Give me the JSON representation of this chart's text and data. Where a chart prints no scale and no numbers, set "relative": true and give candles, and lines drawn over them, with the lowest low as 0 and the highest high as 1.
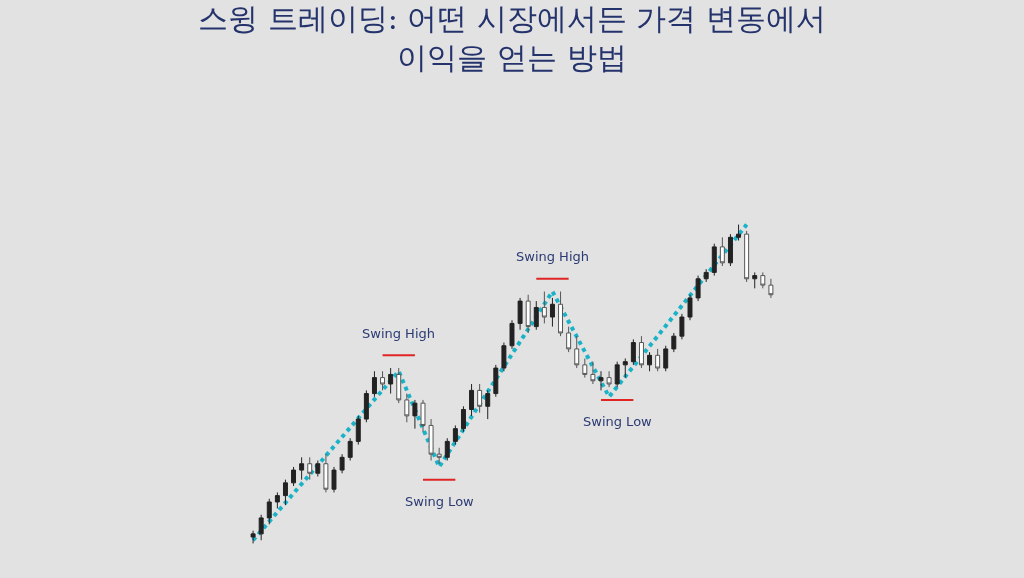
{
  "chart_data": {
    "type": "candlestick",
    "relative": true,
    "title": "스윙 트레이딩: 어떤 시장에서든 가격 변동에서\n이익을 얻는 방법",
    "categories": [
      null,
      null,
      null,
      null,
      null,
      null,
      null,
      null,
      null,
      null,
      null,
      null,
      null,
      null,
      null,
      null,
      null,
      null,
      null,
      null,
      null,
      null,
      null,
      null,
      null,
      null,
      null,
      null,
      null,
      null,
      null,
      null,
      null,
      null,
      null,
      null,
      null,
      null,
      null,
      null,
      null,
      null,
      null,
      null,
      null,
      null,
      null,
      null,
      null,
      null,
      null,
      null,
      null,
      null,
      null,
      null,
      null,
      null,
      null,
      null,
      null,
      null,
      null,
      null,
      null
    ],
    "ohlc": [
      [
        0.02,
        0.04,
        0.0,
        0.03
      ],
      [
        0.03,
        0.09,
        0.01,
        0.08
      ],
      [
        0.08,
        0.14,
        0.06,
        0.13
      ],
      [
        0.13,
        0.16,
        0.11,
        0.15
      ],
      [
        0.15,
        0.2,
        0.12,
        0.19
      ],
      [
        0.19,
        0.24,
        0.18,
        0.23
      ],
      [
        0.23,
        0.27,
        0.2,
        0.25
      ],
      [
        0.25,
        0.27,
        0.2,
        0.22
      ],
      [
        0.22,
        0.26,
        0.21,
        0.25
      ],
      [
        0.25,
        0.28,
        0.16,
        0.17
      ],
      [
        0.17,
        0.24,
        0.16,
        0.23
      ],
      [
        0.23,
        0.28,
        0.22,
        0.27
      ],
      [
        0.27,
        0.33,
        0.26,
        0.32
      ],
      [
        0.32,
        0.4,
        0.31,
        0.39
      ],
      [
        0.39,
        0.48,
        0.38,
        0.47
      ],
      [
        0.47,
        0.54,
        0.46,
        0.52
      ],
      [
        0.52,
        0.54,
        0.48,
        0.5
      ],
      [
        0.5,
        0.55,
        0.47,
        0.53
      ],
      [
        0.53,
        0.55,
        0.44,
        0.45
      ],
      [
        0.45,
        0.47,
        0.38,
        0.4
      ],
      [
        0.4,
        0.45,
        0.36,
        0.44
      ],
      [
        0.44,
        0.45,
        0.35,
        0.37
      ],
      [
        0.37,
        0.39,
        0.26,
        0.28
      ],
      [
        0.28,
        0.3,
        0.25,
        0.27
      ],
      [
        0.27,
        0.33,
        0.26,
        0.32
      ],
      [
        0.32,
        0.37,
        0.31,
        0.36
      ],
      [
        0.36,
        0.43,
        0.35,
        0.42
      ],
      [
        0.42,
        0.5,
        0.4,
        0.48
      ],
      [
        0.48,
        0.5,
        0.41,
        0.43
      ],
      [
        0.43,
        0.48,
        0.39,
        0.47
      ],
      [
        0.47,
        0.56,
        0.46,
        0.55
      ],
      [
        0.55,
        0.63,
        0.54,
        0.62
      ],
      [
        0.62,
        0.7,
        0.61,
        0.69
      ],
      [
        0.69,
        0.77,
        0.67,
        0.76
      ],
      [
        0.76,
        0.78,
        0.66,
        0.68
      ],
      [
        0.68,
        0.76,
        0.67,
        0.74
      ],
      [
        0.74,
        0.79,
        0.69,
        0.71
      ],
      [
        0.71,
        0.77,
        0.68,
        0.75
      ],
      [
        0.75,
        0.79,
        0.65,
        0.66
      ],
      [
        0.66,
        0.68,
        0.6,
        0.61
      ],
      [
        0.61,
        0.65,
        0.55,
        0.56
      ],
      [
        0.56,
        0.58,
        0.52,
        0.53
      ],
      [
        0.53,
        0.57,
        0.5,
        0.51
      ],
      [
        0.51,
        0.54,
        0.48,
        0.52
      ],
      [
        0.52,
        0.54,
        0.49,
        0.5
      ],
      [
        0.5,
        0.57,
        0.49,
        0.56
      ],
      [
        0.56,
        0.58,
        0.52,
        0.57
      ],
      [
        0.57,
        0.64,
        0.56,
        0.63
      ],
      [
        0.63,
        0.65,
        0.55,
        0.56
      ],
      [
        0.56,
        0.6,
        0.54,
        0.59
      ],
      [
        0.59,
        0.61,
        0.54,
        0.55
      ],
      [
        0.55,
        0.62,
        0.54,
        0.61
      ],
      [
        0.61,
        0.66,
        0.6,
        0.65
      ],
      [
        0.65,
        0.72,
        0.64,
        0.71
      ],
      [
        0.71,
        0.78,
        0.7,
        0.77
      ],
      [
        0.77,
        0.84,
        0.76,
        0.83
      ],
      [
        0.83,
        0.86,
        0.82,
        0.85
      ],
      [
        0.85,
        0.94,
        0.84,
        0.93
      ],
      [
        0.93,
        0.96,
        0.87,
        0.88
      ],
      [
        0.88,
        0.97,
        0.87,
        0.96
      ],
      [
        0.96,
        1.0,
        0.95,
        0.97
      ],
      [
        0.97,
        0.98,
        0.82,
        0.83
      ],
      [
        0.83,
        0.85,
        0.8,
        0.84
      ],
      [
        0.84,
        0.85,
        0.8,
        0.81
      ],
      [
        0.81,
        0.83,
        0.77,
        0.78
      ]
    ],
    "series": [
      {
        "type": "line",
        "color": "#1ab2c6",
        "line_style": "dotted",
        "values": [
          0.01,
          null,
          null,
          null,
          null,
          null,
          null,
          null,
          null,
          null,
          null,
          null,
          null,
          null,
          null,
          null,
          null,
          null,
          0.54,
          null,
          null,
          null,
          null,
          0.24,
          null,
          null,
          null,
          null,
          null,
          null,
          null,
          null,
          null,
          null,
          null,
          null,
          null,
          0.79,
          null,
          null,
          null,
          null,
          null,
          null,
          0.46,
          null,
          null,
          null,
          null,
          null,
          null,
          null,
          null,
          null,
          null,
          null,
          null,
          null,
          null,
          null,
          null,
          1.0,
          null,
          null,
          null
        ]
      },
      {
        "type": "line",
        "color": "#e02424",
        "values": [
          null,
          null,
          null,
          null,
          null,
          null,
          null,
          null,
          null,
          null,
          null,
          null,
          null,
          null,
          null,
          null,
          0.59,
          null,
          null,
          null,
          0.59,
          null,
          null,
          null,
          null,
          null,
          null,
          null,
          null,
          null,
          null,
          null,
          null,
          null,
          null,
          null,
          null,
          null,
          null,
          null,
          null,
          null,
          null,
          null,
          null,
          null,
          null,
          null,
          null,
          null,
          null,
          null,
          null,
          null,
          null,
          null,
          null,
          null,
          null,
          null,
          null,
          null,
          null,
          null,
          null
        ]
      },
      {
        "type": "line",
        "color": "#e02424",
        "values": [
          null,
          null,
          null,
          null,
          null,
          null,
          null,
          null,
          null,
          null,
          null,
          null,
          null,
          null,
          null,
          null,
          null,
          null,
          null,
          null,
          null,
          0.2,
          null,
          null,
          null,
          0.2,
          null,
          null,
          null,
          null,
          null,
          null,
          null,
          null,
          null,
          null,
          null,
          null,
          null,
          null,
          null,
          null,
          null,
          null,
          null,
          null,
          null,
          null,
          null,
          null,
          null,
          null,
          null,
          null,
          null,
          null,
          null,
          null,
          null,
          null,
          null,
          null,
          null,
          null,
          null
        ]
      },
      {
        "type": "line",
        "color": "#e02424",
        "values": [
          null,
          null,
          null,
          null,
          null,
          null,
          null,
          null,
          null,
          null,
          null,
          null,
          null,
          null,
          null,
          null,
          null,
          null,
          null,
          null,
          null,
          null,
          null,
          null,
          null,
          null,
          null,
          null,
          null,
          null,
          null,
          null,
          null,
          null,
          null,
          0.83,
          null,
          null,
          null,
          0.83,
          null,
          null,
          null,
          null,
          null,
          null,
          null,
          null,
          null,
          null,
          null,
          null,
          null,
          null,
          null,
          null,
          null,
          null,
          null,
          null,
          null,
          null,
          null,
          null,
          null
        ]
      },
      {
        "type": "line",
        "color": "#e02424",
        "values": [
          null,
          null,
          null,
          null,
          null,
          null,
          null,
          null,
          null,
          null,
          null,
          null,
          null,
          null,
          null,
          null,
          null,
          null,
          null,
          null,
          null,
          null,
          null,
          null,
          null,
          null,
          null,
          null,
          null,
          null,
          null,
          null,
          null,
          null,
          null,
          null,
          null,
          null,
          null,
          null,
          null,
          null,
          null,
          0.45,
          null,
          null,
          null,
          0.45,
          null,
          null,
          null,
          null,
          null,
          null,
          null,
          null,
          null,
          null,
          null,
          null,
          null,
          null,
          null,
          null,
          null
        ]
      }
    ],
    "annotations": [
      "Swing High",
      "Swing Low",
      "Swing High",
      "Swing Low"
    ]
  }
}
